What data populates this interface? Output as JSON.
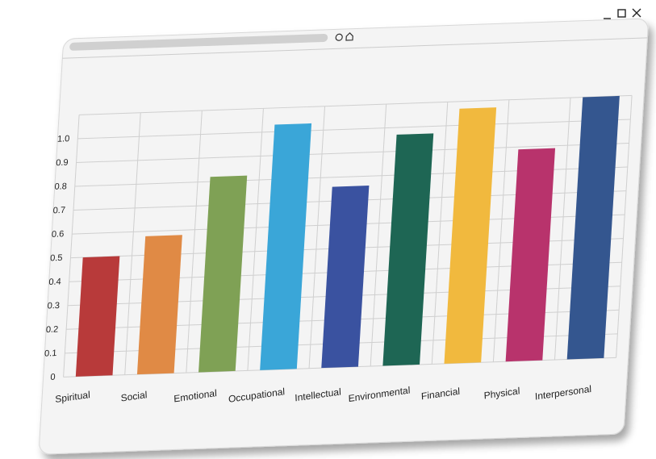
{
  "chart_data": {
    "type": "bar",
    "categories": [
      "Spiritual",
      "Social",
      "Emotional",
      "Occupational",
      "Intellectual",
      "Environmental",
      "Financial",
      "Physical",
      "Interpersonal"
    ],
    "values": [
      0.5,
      0.58,
      0.82,
      1.03,
      0.76,
      0.97,
      1.07,
      0.89,
      1.1
    ],
    "colors": [
      "#b83a3a",
      "#e08a45",
      "#7fa155",
      "#3aa6d8",
      "#3a52a0",
      "#1e6654",
      "#f1b93e",
      "#b8336c",
      "#34568f"
    ],
    "ylim": [
      0,
      1.1
    ],
    "yticks": [
      0,
      0.1,
      0.2,
      0.3,
      0.4,
      0.5,
      0.6,
      0.7,
      0.8,
      0.9,
      {
        "value": 1,
        "label": "1.0"
      }
    ],
    "grid": true
  }
}
